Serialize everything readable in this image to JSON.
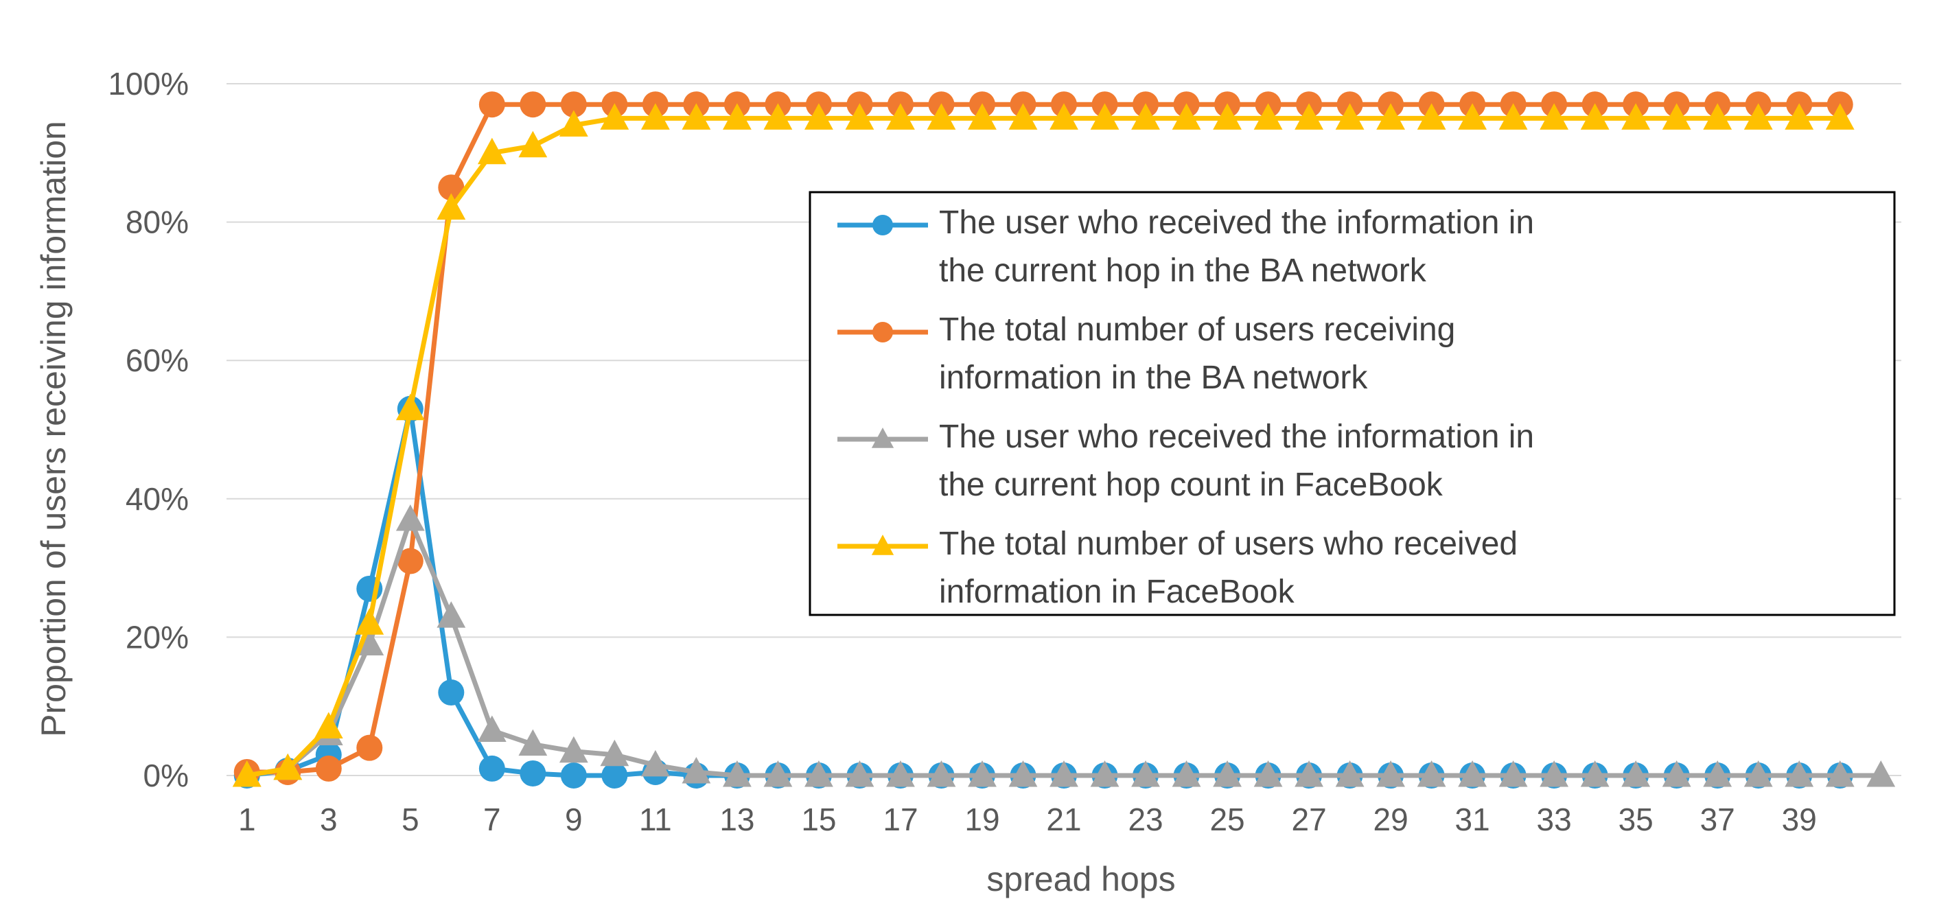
{
  "chart_data": {
    "type": "line",
    "xlabel": "spread hops",
    "ylabel": "Proportion of users receiving information",
    "ylim": [
      0,
      100
    ],
    "y_ticks": [
      "0%",
      "20%",
      "40%",
      "60%",
      "80%",
      "100%"
    ],
    "x_ticks": [
      "1",
      "3",
      "5",
      "7",
      "9",
      "11",
      "13",
      "15",
      "17",
      "19",
      "21",
      "23",
      "25",
      "27",
      "29",
      "31",
      "33",
      "35",
      "37",
      "39"
    ],
    "grid": "horizontal",
    "legend_position": "right",
    "x": [
      1,
      2,
      3,
      4,
      5,
      6,
      7,
      8,
      9,
      10,
      11,
      12,
      13,
      14,
      15,
      16,
      17,
      18,
      19,
      20,
      21,
      22,
      23,
      24,
      25,
      26,
      27,
      28,
      29,
      30,
      31,
      32,
      33,
      34,
      35,
      36,
      37,
      38,
      39,
      40,
      41
    ],
    "series": [
      {
        "name": "The user who received the information in the current hop in the BA network",
        "color": "#2E9BD6",
        "marker": "circle",
        "values": [
          0,
          0.7,
          3,
          27,
          53,
          12,
          1,
          0.3,
          0,
          0,
          0.5,
          0,
          0,
          0,
          0,
          0,
          0,
          0,
          0,
          0,
          0,
          0,
          0,
          0,
          0,
          0,
          0,
          0,
          0,
          0,
          0,
          0,
          0,
          0,
          0,
          0,
          0,
          0,
          0,
          0,
          null
        ]
      },
      {
        "name": "The total number of users receiving information in the BA network",
        "color": "#F07A30",
        "marker": "circle",
        "values": [
          0.5,
          0.5,
          1,
          4,
          31,
          85,
          97,
          97,
          97,
          97,
          97,
          97,
          97,
          97,
          97,
          97,
          97,
          97,
          97,
          97,
          97,
          97,
          97,
          97,
          97,
          97,
          97,
          97,
          97,
          97,
          97,
          97,
          97,
          97,
          97,
          97,
          97,
          97,
          97,
          97,
          null
        ]
      },
      {
        "name": "The user who received the information in the current hop count in FaceBook",
        "color": "#A5A5A5",
        "marker": "triangle",
        "values": [
          0,
          1,
          6,
          19,
          37,
          23,
          6.5,
          4.5,
          3.5,
          3,
          1.5,
          0.5,
          0,
          0,
          0,
          0,
          0,
          0,
          0,
          0,
          0,
          0,
          0,
          0,
          0,
          0,
          0,
          0,
          0,
          0,
          0,
          0,
          0,
          0,
          0,
          0,
          0,
          0,
          0,
          0,
          0
        ]
      },
      {
        "name": "The total number of users who received information in FaceBook",
        "color": "#FFC000",
        "marker": "triangle",
        "values": [
          0,
          1,
          7,
          22,
          53,
          82,
          90,
          91,
          94,
          95,
          95,
          95,
          95,
          95,
          95,
          95,
          95,
          95,
          95,
          95,
          95,
          95,
          95,
          95,
          95,
          95,
          95,
          95,
          95,
          95,
          95,
          95,
          95,
          95,
          95,
          95,
          95,
          95,
          95,
          95,
          null
        ]
      }
    ]
  }
}
